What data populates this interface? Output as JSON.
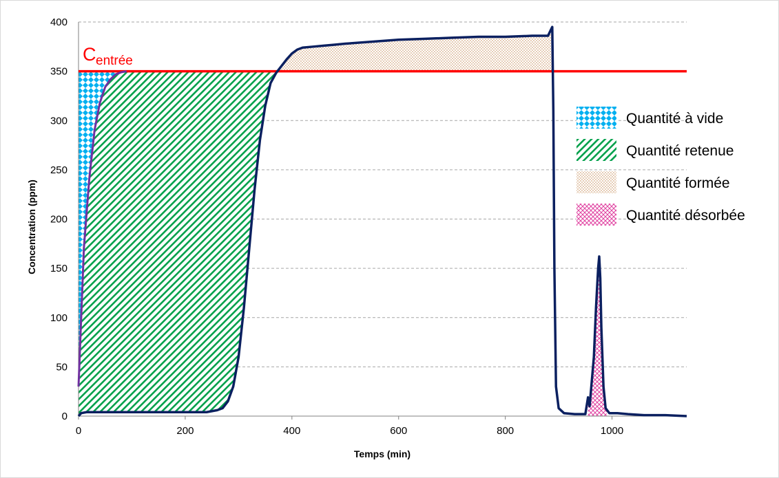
{
  "chart_data": {
    "type": "area",
    "xlabel": "Temps (min)",
    "ylabel": "Concentration (ppm)",
    "xlim": [
      0,
      1140
    ],
    "ylim": [
      0,
      400
    ],
    "x_ticks": [
      0,
      200,
      400,
      600,
      800,
      1000
    ],
    "y_ticks": [
      0,
      50,
      100,
      150,
      200,
      250,
      300,
      350,
      400
    ],
    "grid": "horizontal dashed",
    "legend_position": "right",
    "reference_line": {
      "y": 350,
      "label_main": "C",
      "label_sub": "entrée",
      "color": "#ff0000"
    },
    "series": [
      {
        "kind": "measured",
        "color": "#0b2060",
        "x": [
          0,
          5,
          15,
          50,
          100,
          150,
          200,
          240,
          260,
          270,
          280,
          290,
          300,
          310,
          320,
          330,
          340,
          350,
          360,
          370,
          380,
          390,
          400,
          410,
          420,
          440,
          460,
          480,
          500,
          550,
          600,
          650,
          700,
          750,
          800,
          850,
          880,
          888,
          890,
          892,
          895,
          900,
          910,
          930,
          950,
          955,
          958,
          962,
          966,
          970,
          974,
          976,
          978,
          980,
          984,
          988,
          995,
          1010,
          1030,
          1060,
          1100,
          1140
        ],
        "y": [
          0,
          3,
          4,
          4,
          4,
          4,
          4,
          4,
          6,
          8,
          15,
          30,
          60,
          110,
          170,
          230,
          280,
          315,
          338,
          348,
          355,
          362,
          368,
          372,
          374,
          375,
          376,
          377,
          378,
          380,
          382,
          383,
          384,
          385,
          385,
          386,
          386,
          395,
          310,
          150,
          30,
          8,
          3,
          2,
          2,
          19,
          10,
          35,
          60,
          110,
          150,
          162,
          140,
          90,
          30,
          8,
          3,
          3,
          2,
          1,
          1,
          0
        ]
      },
      {
        "kind": "empty_reactor",
        "color": "#7030a0",
        "x": [
          0,
          5,
          10,
          20,
          30,
          40,
          50,
          60,
          70,
          80,
          90
        ],
        "y": [
          30,
          100,
          170,
          240,
          290,
          318,
          334,
          342,
          347,
          349,
          350
        ]
      }
    ],
    "legend": [
      {
        "label": "Quantité à vide",
        "pattern": "diamond",
        "color": "#00b0f0"
      },
      {
        "label": "Quantité retenue",
        "pattern": "diagonal",
        "color": "#00b050"
      },
      {
        "label": "Quantité formée",
        "pattern": "dots",
        "color": "#c8a07a"
      },
      {
        "label": "Quantité désorbée",
        "pattern": "cross",
        "color": "#e040a0"
      }
    ],
    "areas": [
      {
        "legend_index": 0,
        "between": "empty_reactor_and_axis",
        "x_range": [
          0,
          90
        ]
      },
      {
        "legend_index": 1,
        "between": "empty_reactor_and_measured",
        "x_range": [
          0,
          380
        ]
      },
      {
        "legend_index": 2,
        "between": "reference_and_measured",
        "x_range": [
          380,
          890
        ]
      },
      {
        "legend_index": 3,
        "between": "measured_and_axis",
        "x_range": [
          955,
          990
        ]
      }
    ]
  }
}
